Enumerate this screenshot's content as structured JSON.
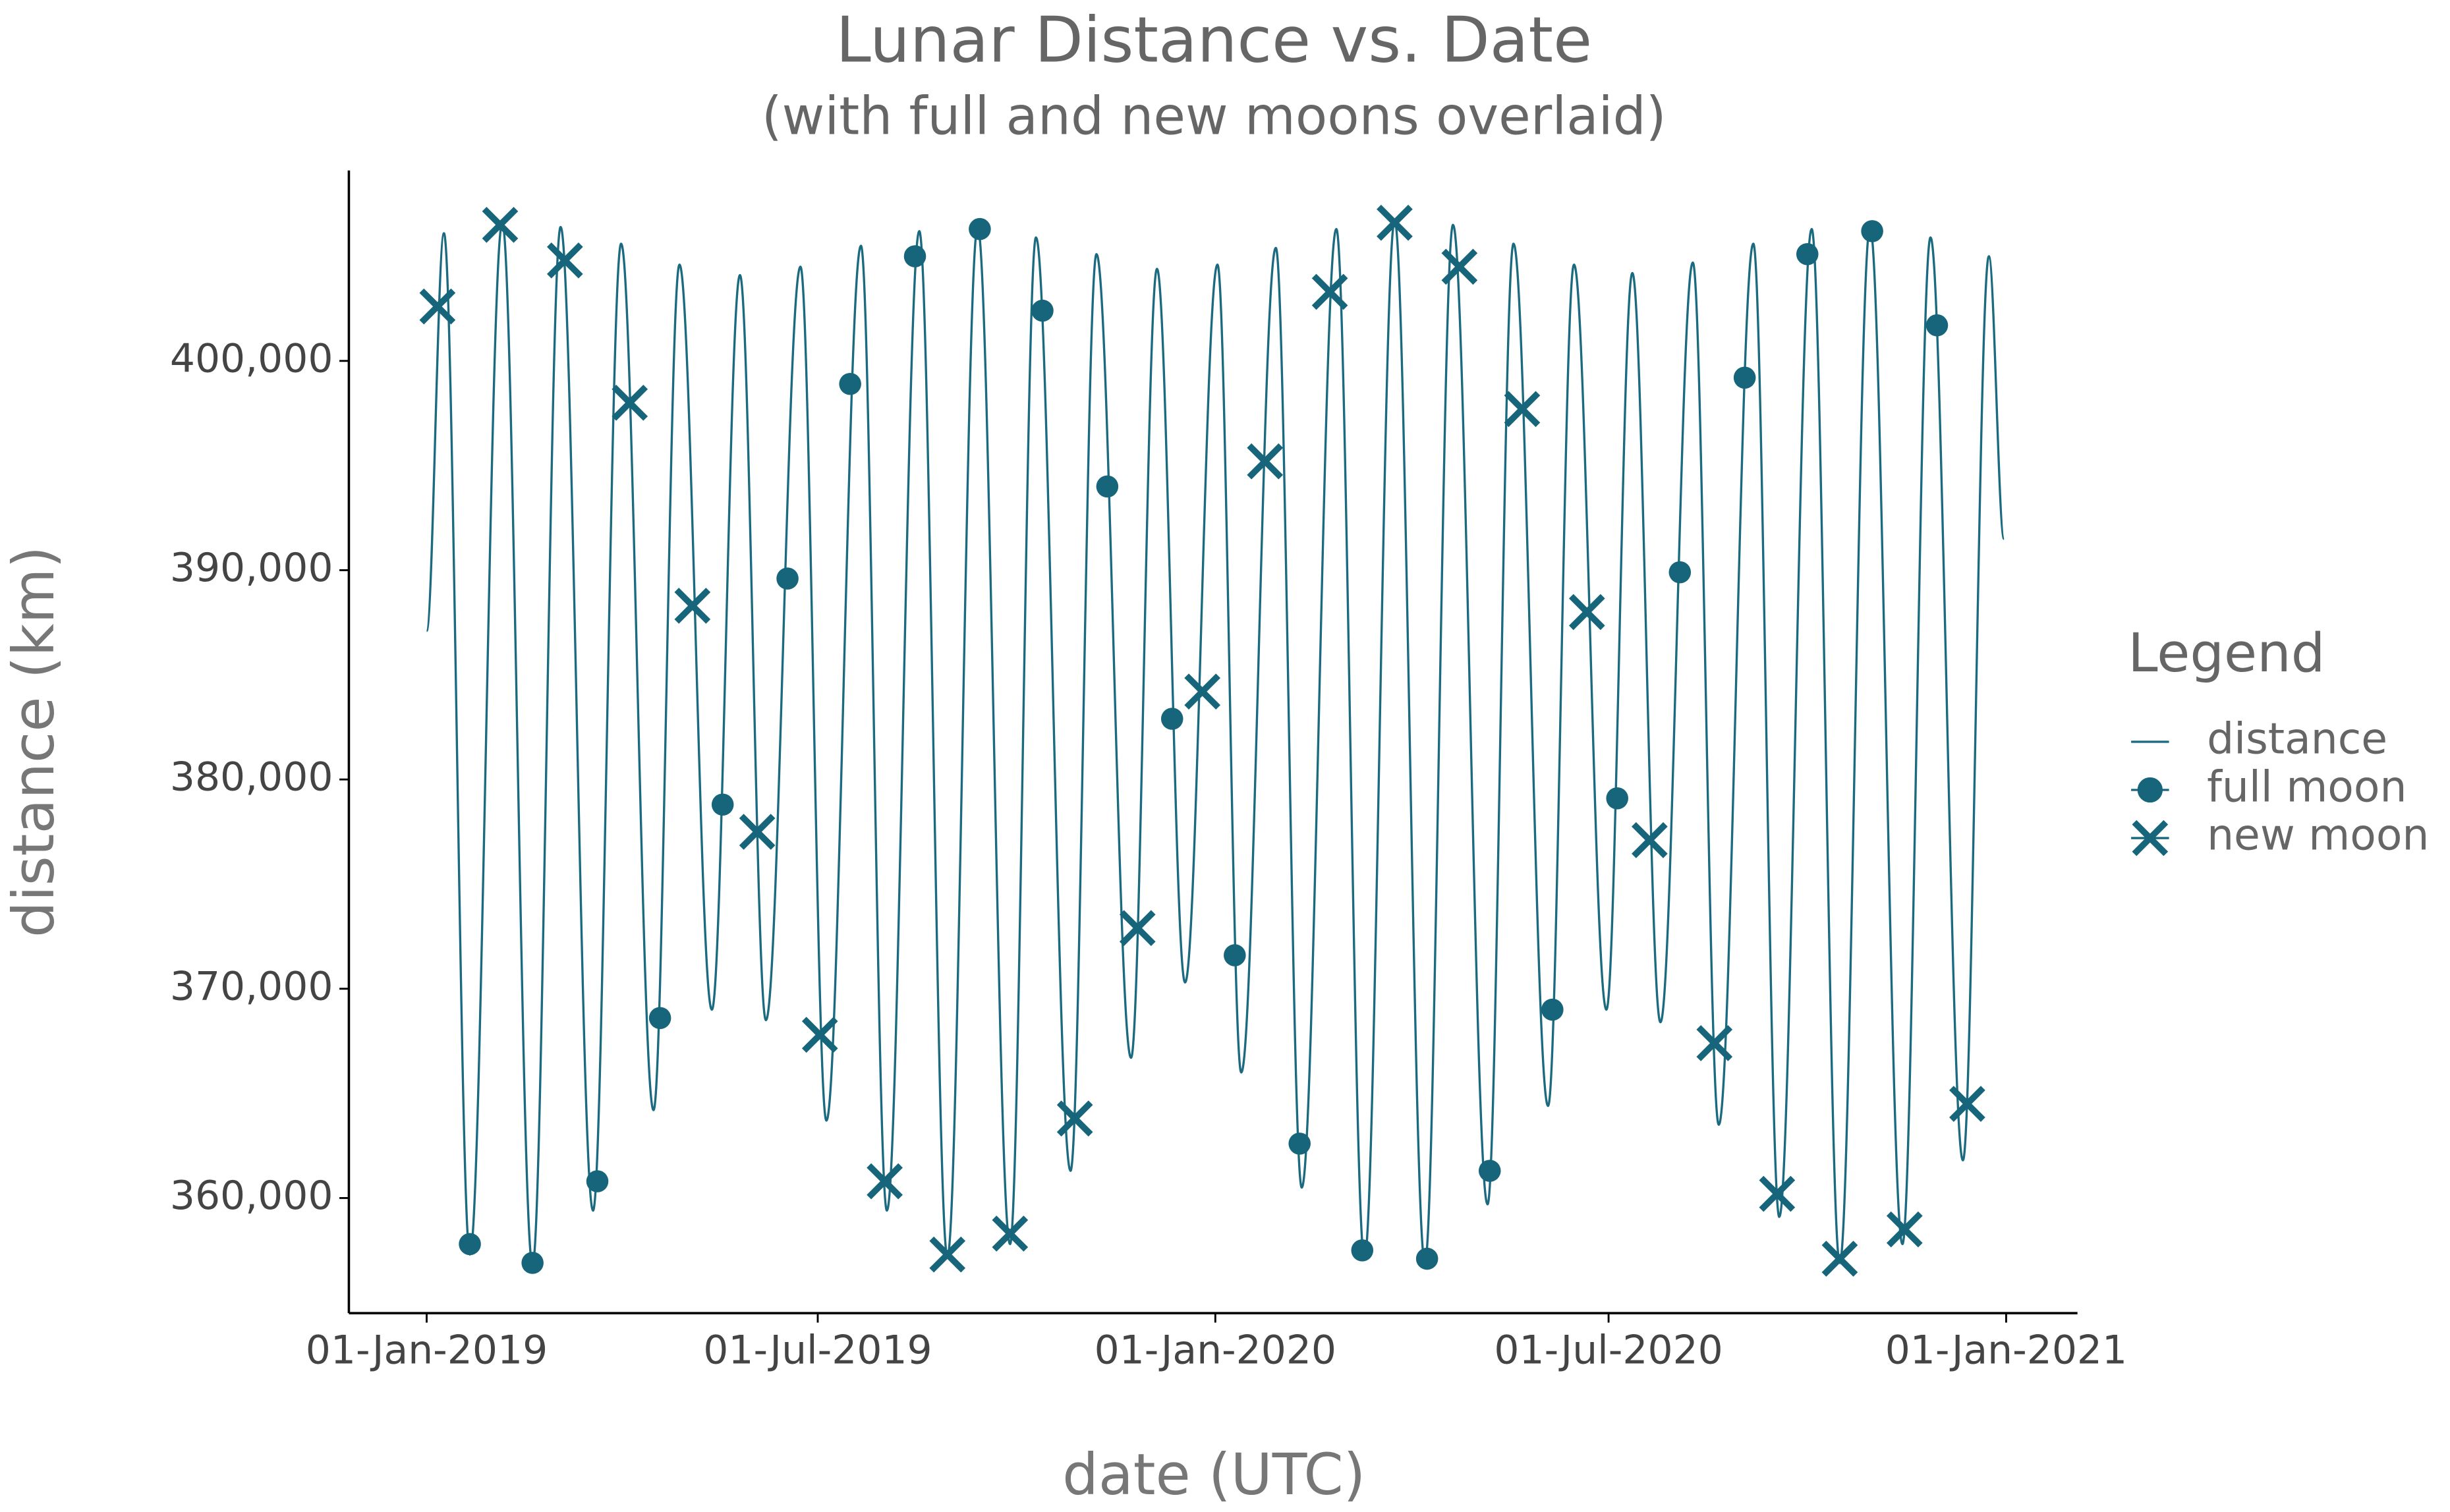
{
  "chart_data": {
    "type": "line",
    "title": "Lunar Distance vs. Date",
    "subtitle": "(with full and new moons overlaid)",
    "x_label": "date (UTC)",
    "y_label": "distance (km)",
    "legend_title": "Legend",
    "legend": "right",
    "grid": false,
    "xlim": [
      "2018-11-26",
      "2021-02-03"
    ],
    "ylim": [
      354500,
      409100
    ],
    "xticks": [
      {
        "value": "2019-01-01",
        "label": "01-Jan-2019"
      },
      {
        "value": "2019-07-01",
        "label": "01-Jul-2019"
      },
      {
        "value": "2020-01-01",
        "label": "01-Jan-2020"
      },
      {
        "value": "2020-07-01",
        "label": "01-Jul-2020"
      },
      {
        "value": "2021-01-01",
        "label": "01-Jan-2021"
      }
    ],
    "yticks": [
      {
        "value": 360000,
        "label": "360,000"
      },
      {
        "value": 370000,
        "label": "370,000"
      },
      {
        "value": 380000,
        "label": "380,000"
      },
      {
        "value": 390000,
        "label": "390,000"
      },
      {
        "value": 400000,
        "label": "400,000"
      }
    ],
    "series": [
      {
        "name": "distance",
        "marker": "line",
        "color": "#1b6a80",
        "x": [
          "2019-01-01",
          "2019-01-09",
          "2019-01-21",
          "2019-02-05",
          "2019-02-19",
          "2019-03-04",
          "2019-03-19",
          "2019-04-01",
          "2019-04-16",
          "2019-04-28",
          "2019-05-13",
          "2019-05-26",
          "2019-06-07",
          "2019-06-23",
          "2019-07-05",
          "2019-07-21",
          "2019-08-02",
          "2019-08-17",
          "2019-08-30",
          "2019-09-13",
          "2019-09-28",
          "2019-10-10",
          "2019-10-26",
          "2019-11-07",
          "2019-11-23",
          "2019-12-05",
          "2019-12-18",
          "2020-01-02",
          "2020-01-13",
          "2020-01-29",
          "2020-02-10",
          "2020-02-26",
          "2020-03-10",
          "2020-03-24",
          "2020-04-07",
          "2020-04-20",
          "2020-05-06",
          "2020-05-18",
          "2020-06-03",
          "2020-06-15",
          "2020-06-30",
          "2020-07-12",
          "2020-07-25",
          "2020-08-09",
          "2020-08-21",
          "2020-09-06",
          "2020-09-18",
          "2020-10-03",
          "2020-10-16",
          "2020-10-30",
          "2020-11-14",
          "2020-11-27",
          "2020-12-12",
          "2020-12-24",
          "2020-12-31"
        ],
        "values": [
          387100,
          406100,
          357300,
          406600,
          356800,
          406400,
          359400,
          405600,
          364200,
          404600,
          369000,
          404100,
          368500,
          404500,
          363700,
          405500,
          359400,
          406200,
          357200,
          406400,
          357800,
          405900,
          361300,
          405100,
          366700,
          404400,
          370300,
          404600,
          366000,
          405400,
          360500,
          406300,
          357100,
          406700,
          356900,
          406500,
          359700,
          405600,
          364400,
          404600,
          369000,
          404200,
          368400,
          404700,
          363500,
          405600,
          359100,
          406300,
          356900,
          406400,
          357800,
          405900,
          361800,
          405000,
          391500
        ]
      },
      {
        "name": "full moon",
        "marker": "circle",
        "color": "#16657a",
        "x": [
          "2019-01-21",
          "2019-02-19",
          "2019-03-21",
          "2019-04-19",
          "2019-05-18",
          "2019-06-17",
          "2019-07-16",
          "2019-08-15",
          "2019-09-14",
          "2019-10-13",
          "2019-11-12",
          "2019-12-12",
          "2020-01-10",
          "2020-02-09",
          "2020-03-09",
          "2020-04-08",
          "2020-05-07",
          "2020-06-05",
          "2020-07-05",
          "2020-08-03",
          "2020-09-02",
          "2020-10-01",
          "2020-10-31",
          "2020-11-30"
        ],
        "values": [
          357800,
          356900,
          360800,
          368600,
          378800,
          389600,
          398900,
          405000,
          406300,
          402400,
          394000,
          382900,
          371600,
          362600,
          357500,
          357100,
          361300,
          369000,
          379100,
          389900,
          399200,
          405100,
          406200,
          401700
        ]
      },
      {
        "name": "new moon",
        "marker": "x",
        "color": "#16657a",
        "x": [
          "2019-01-06",
          "2019-02-04",
          "2019-03-06",
          "2019-04-05",
          "2019-05-04",
          "2019-06-03",
          "2019-07-02",
          "2019-08-01",
          "2019-08-30",
          "2019-09-28",
          "2019-10-28",
          "2019-11-26",
          "2019-12-26",
          "2020-01-24",
          "2020-02-23",
          "2020-03-24",
          "2020-04-23",
          "2020-05-22",
          "2020-06-21",
          "2020-07-20",
          "2020-08-19",
          "2020-09-17",
          "2020-10-16",
          "2020-11-15",
          "2020-12-14"
        ],
        "values": [
          402600,
          406500,
          404800,
          398000,
          388300,
          377500,
          367800,
          360800,
          357300,
          358300,
          363800,
          372900,
          384200,
          395200,
          403300,
          406600,
          404500,
          397700,
          388000,
          377100,
          367400,
          360200,
          357100,
          358500,
          364500
        ]
      }
    ]
  }
}
